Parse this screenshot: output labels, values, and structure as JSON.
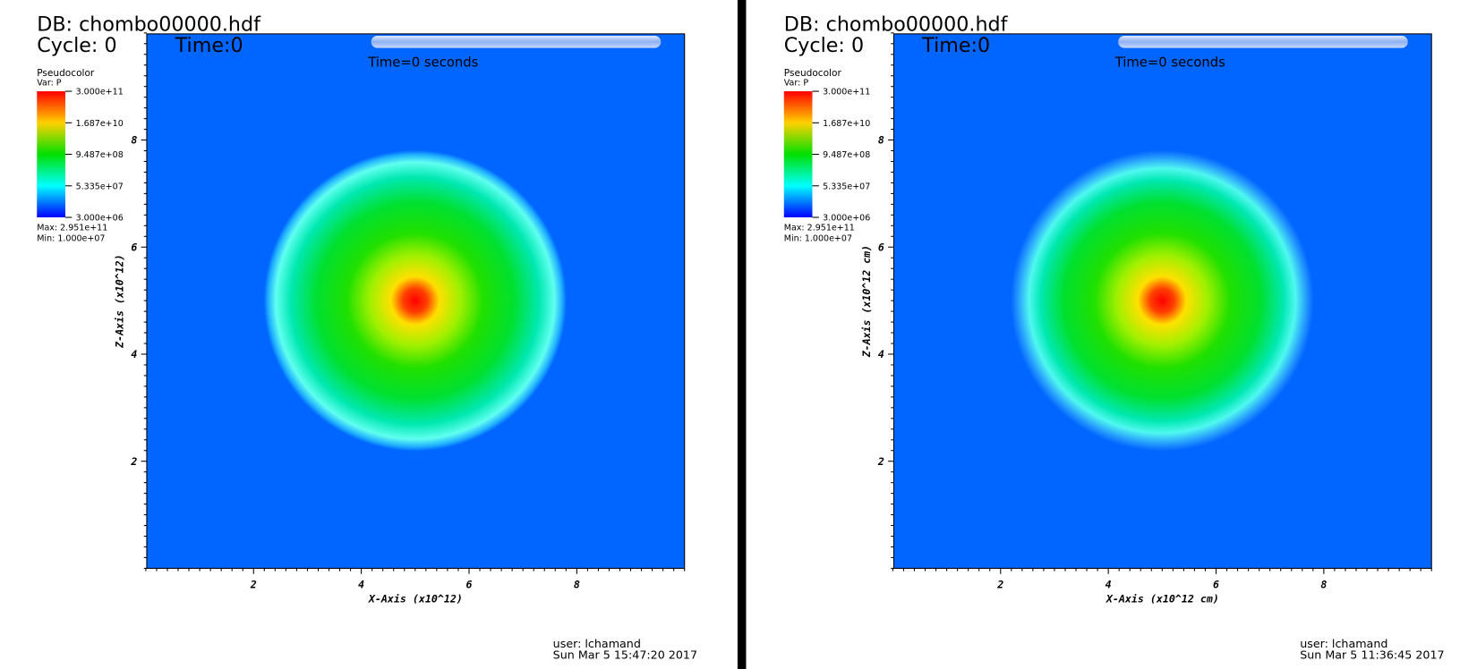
{
  "panels": [
    {
      "db": "DB: chombo00000.hdf",
      "cycle": "Cycle: 0",
      "time": "Time:0",
      "time_annotation": "Time=0 seconds",
      "legend": {
        "plot": "Pseudocolor",
        "var": "Var: P",
        "ticks": [
          "3.000e+11",
          "1.687e+10",
          "9.487e+08",
          "5.335e+07",
          "3.000e+06"
        ],
        "max": "Max:  2.951e+11",
        "min": "Min:  1.000e+07"
      },
      "x_axis": {
        "label": "X-Axis (x10^12)",
        "ticks": [
          "2",
          "4",
          "6",
          "8"
        ]
      },
      "y_axis": {
        "label": "Z-Axis (x10^12)",
        "ticks": [
          "8",
          "6",
          "4",
          "2"
        ]
      },
      "user": "user: lchamand",
      "date": "Sun Mar  5 15:47:20 2017"
    },
    {
      "db": "DB: chombo00000.hdf",
      "cycle": "Cycle: 0",
      "time": "Time:0",
      "time_annotation": "Time=0 seconds",
      "legend": {
        "plot": "Pseudocolor",
        "var": "Var: P",
        "ticks": [
          "3.000e+11",
          "1.687e+10",
          "9.487e+08",
          "5.335e+07",
          "3.000e+06"
        ],
        "max": "Max:  2.951e+11",
        "min": "Min:  1.000e+07"
      },
      "x_axis": {
        "label": "X-Axis (x10^12 cm)",
        "ticks": [
          "2",
          "4",
          "6",
          "8"
        ]
      },
      "y_axis": {
        "label": "Z-Axis (x10^12 cm)",
        "ticks": [
          "8",
          "6",
          "4",
          "2"
        ]
      },
      "user": "user: lchamand",
      "date": "Sun Mar  5 11:36:45 2017"
    }
  ]
}
